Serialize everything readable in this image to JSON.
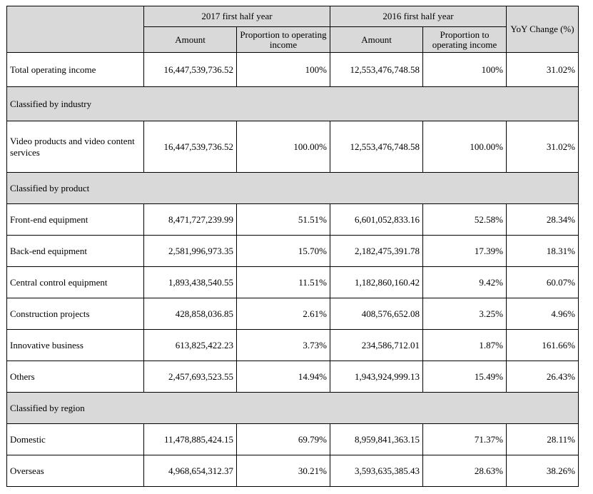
{
  "header": {
    "period_2017": "2017 first half year",
    "period_2016": "2016 first half year",
    "yoy": "YoY Change (%)",
    "amount": "Amount",
    "proportion": "Proportion to operating income"
  },
  "rows": {
    "total": {
      "label": "Total operating income",
      "a17": "16,447,539,736.52",
      "p17": "100%",
      "a16": "12,553,476,748.58",
      "p16": "100%",
      "yoy": "31.02%"
    },
    "sec_industry": "Classified by industry",
    "video": {
      "label": "Video products and video content services",
      "a17": "16,447,539,736.52",
      "p17": "100.00%",
      "a16": "12,553,476,748.58",
      "p16": "100.00%",
      "yoy": "31.02%"
    },
    "sec_product": "Classified by product",
    "frontend": {
      "label": "Front-end equipment",
      "a17": "8,471,727,239.99",
      "p17": "51.51%",
      "a16": "6,601,052,833.16",
      "p16": "52.58%",
      "yoy": "28.34%"
    },
    "backend": {
      "label": "Back-end equipment",
      "a17": "2,581,996,973.35",
      "p17": "15.70%",
      "a16": "2,182,475,391.78",
      "p16": "17.39%",
      "yoy": "18.31%"
    },
    "central": {
      "label": "Central control equipment",
      "a17": "1,893,438,540.55",
      "p17": "11.51%",
      "a16": "1,182,860,160.42",
      "p16": "9.42%",
      "yoy": "60.07%"
    },
    "construction": {
      "label": "Construction projects",
      "a17": "428,858,036.85",
      "p17": "2.61%",
      "a16": "408,576,652.08",
      "p16": "3.25%",
      "yoy": "4.96%"
    },
    "innovative": {
      "label": "Innovative business",
      "a17": "613,825,422.23",
      "p17": "3.73%",
      "a16": "234,586,712.01",
      "p16": "1.87%",
      "yoy": "161.66%"
    },
    "others": {
      "label": "Others",
      "a17": "2,457,693,523.55",
      "p17": "14.94%",
      "a16": "1,943,924,999.13",
      "p16": "15.49%",
      "yoy": "26.43%"
    },
    "sec_region": "Classified by region",
    "domestic": {
      "label": "Domestic",
      "a17": "11,478,885,424.15",
      "p17": "69.79%",
      "a16": "8,959,841,363.15",
      "p16": "71.37%",
      "yoy": "28.11%"
    },
    "overseas": {
      "label": "Overseas",
      "a17": "4,968,654,312.37",
      "p17": "30.21%",
      "a16": "3,593,635,385.43",
      "p16": "28.63%",
      "yoy": "38.26%"
    }
  }
}
